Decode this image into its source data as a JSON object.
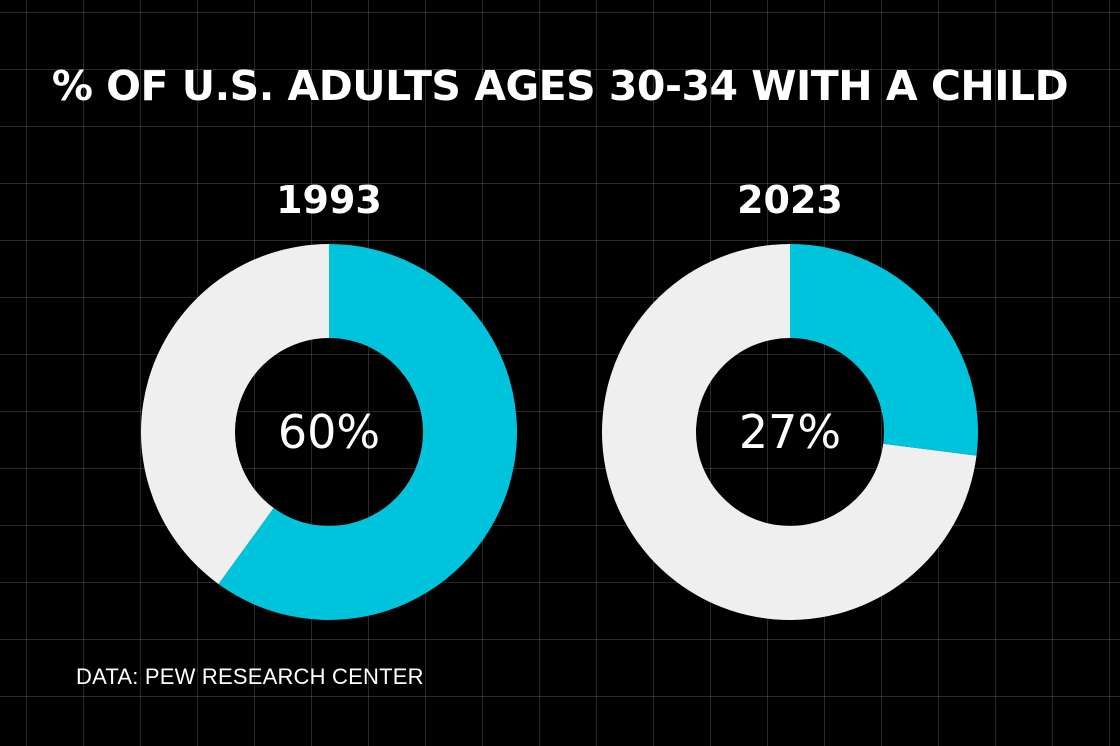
{
  "title": "% OF U.S. ADULTS AGES 30-34 WITH A CHILD",
  "source": "DATA: PEW RESEARCH CENTER",
  "colors": {
    "background": "#000000",
    "highlight": "#00C4DB",
    "remainder": "#EFEFEF",
    "text": "#FFFFFF"
  },
  "chart_data": [
    {
      "type": "pie",
      "variant": "donut",
      "title": "1993",
      "value": 60,
      "value_label": "60%",
      "total": 100
    },
    {
      "type": "pie",
      "variant": "donut",
      "title": "2023",
      "value": 27,
      "value_label": "27%",
      "total": 100
    }
  ]
}
